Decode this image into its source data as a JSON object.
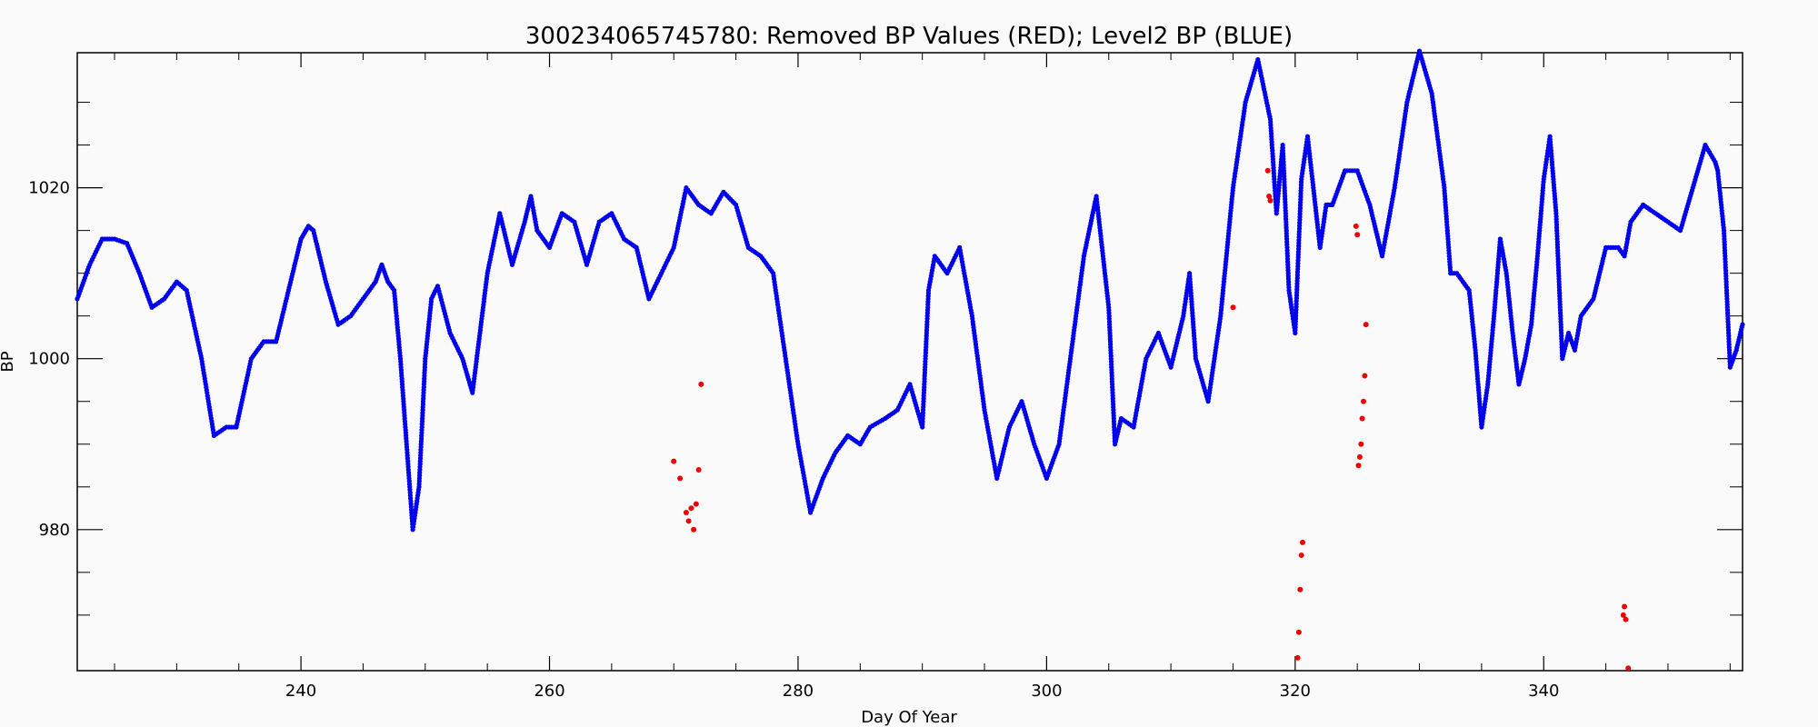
{
  "chart_data": {
    "type": "scatter",
    "title": "300234065745780: Removed BP Values (RED); Level2 BP (BLUE)",
    "xlabel": "Day Of Year",
    "ylabel": "BP",
    "xlim": [
      222,
      356
    ],
    "ylim": [
      963.5,
      1035.8
    ],
    "x_ticks_major": [
      240,
      260,
      280,
      300,
      320,
      340
    ],
    "x_ticks_minor": [
      225,
      230,
      235,
      245,
      250,
      255,
      265,
      270,
      275,
      285,
      290,
      295,
      305,
      310,
      315,
      325,
      330,
      335,
      345,
      350,
      355
    ],
    "y_ticks_major": [
      980,
      1000,
      1020
    ],
    "y_ticks_minor": [
      970,
      975,
      985,
      990,
      995,
      1005,
      1010,
      1015,
      1025,
      1030
    ],
    "grid": false,
    "series": [
      {
        "name": "Level2 BP",
        "color": "#0000ee",
        "points": [
          [
            222,
            1007
          ],
          [
            223,
            1011
          ],
          [
            224,
            1014
          ],
          [
            225,
            1014
          ],
          [
            226,
            1013.5
          ],
          [
            227,
            1010
          ],
          [
            228,
            1006
          ],
          [
            229,
            1007
          ],
          [
            230,
            1009
          ],
          [
            230.8,
            1008
          ],
          [
            232,
            1000
          ],
          [
            233,
            991
          ],
          [
            234,
            992
          ],
          [
            234.8,
            992
          ],
          [
            236,
            1000
          ],
          [
            237,
            1002
          ],
          [
            238,
            1002
          ],
          [
            239,
            1008
          ],
          [
            240,
            1014
          ],
          [
            240.6,
            1015.5
          ],
          [
            241,
            1015
          ],
          [
            242,
            1009
          ],
          [
            243,
            1004
          ],
          [
            244,
            1005
          ],
          [
            245,
            1007
          ],
          [
            246,
            1009
          ],
          [
            246.5,
            1011
          ],
          [
            247,
            1009
          ],
          [
            247.5,
            1008
          ],
          [
            248,
            1000
          ],
          [
            248.5,
            990
          ],
          [
            249,
            980
          ],
          [
            249.5,
            985
          ],
          [
            250,
            1000
          ],
          [
            250.5,
            1007
          ],
          [
            251,
            1008.5
          ],
          [
            252,
            1003
          ],
          [
            253,
            1000
          ],
          [
            253.8,
            996
          ],
          [
            255,
            1010
          ],
          [
            256,
            1017
          ],
          [
            257,
            1011
          ],
          [
            258,
            1016
          ],
          [
            258.5,
            1019
          ],
          [
            259,
            1015
          ],
          [
            260,
            1013
          ],
          [
            261,
            1017
          ],
          [
            262,
            1016
          ],
          [
            263,
            1011
          ],
          [
            264,
            1016
          ],
          [
            265,
            1017
          ],
          [
            266,
            1014
          ],
          [
            267,
            1013
          ],
          [
            268,
            1007
          ],
          [
            269,
            1010
          ],
          [
            270,
            1013
          ],
          [
            271,
            1020
          ],
          [
            272,
            1018
          ],
          [
            273,
            1017
          ],
          [
            274,
            1019.5
          ],
          [
            275,
            1018
          ],
          [
            276,
            1013
          ],
          [
            277,
            1012
          ],
          [
            278,
            1010
          ],
          [
            279,
            1000
          ],
          [
            280,
            990
          ],
          [
            281,
            982
          ],
          [
            282,
            986
          ],
          [
            283,
            989
          ],
          [
            284,
            991
          ],
          [
            285,
            990
          ],
          [
            285.8,
            992
          ],
          [
            287,
            993
          ],
          [
            288,
            994
          ],
          [
            289,
            997
          ],
          [
            290,
            992
          ],
          [
            290.5,
            1008
          ],
          [
            291,
            1012
          ],
          [
            292,
            1010
          ],
          [
            293,
            1013
          ],
          [
            294,
            1005
          ],
          [
            295,
            994
          ],
          [
            296,
            986
          ],
          [
            297,
            992
          ],
          [
            298,
            995
          ],
          [
            299,
            990
          ],
          [
            300,
            986
          ],
          [
            301,
            990
          ],
          [
            302,
            1001
          ],
          [
            303,
            1012
          ],
          [
            304,
            1019
          ],
          [
            305,
            1006
          ],
          [
            305.5,
            990
          ],
          [
            306,
            993
          ],
          [
            307,
            992
          ],
          [
            308,
            1000
          ],
          [
            309,
            1003
          ],
          [
            310,
            999
          ],
          [
            311,
            1005
          ],
          [
            311.5,
            1010
          ],
          [
            312,
            1000
          ],
          [
            313,
            995
          ],
          [
            314,
            1005
          ],
          [
            315,
            1020
          ],
          [
            316,
            1030
          ],
          [
            317,
            1035
          ],
          [
            318,
            1028
          ],
          [
            318.5,
            1017
          ],
          [
            319,
            1025
          ],
          [
            319.5,
            1008
          ],
          [
            320,
            1003
          ],
          [
            320.5,
            1021
          ],
          [
            321,
            1026
          ],
          [
            322,
            1013
          ],
          [
            322.5,
            1018
          ],
          [
            323,
            1018
          ],
          [
            324,
            1022
          ],
          [
            325,
            1022
          ],
          [
            326,
            1018
          ],
          [
            327,
            1012
          ],
          [
            328,
            1020
          ],
          [
            329,
            1030
          ],
          [
            330,
            1036
          ],
          [
            331,
            1031
          ],
          [
            332,
            1020
          ],
          [
            332.5,
            1010
          ],
          [
            333,
            1010
          ],
          [
            334,
            1008
          ],
          [
            334.5,
            1001
          ],
          [
            335,
            992
          ],
          [
            335.5,
            997
          ],
          [
            336,
            1005
          ],
          [
            336.5,
            1014
          ],
          [
            337,
            1010
          ],
          [
            337.5,
            1003
          ],
          [
            338,
            997
          ],
          [
            338.5,
            1000
          ],
          [
            339,
            1004
          ],
          [
            339.5,
            1012
          ],
          [
            340,
            1021
          ],
          [
            340.5,
            1026
          ],
          [
            341,
            1017
          ],
          [
            341.5,
            1000
          ],
          [
            342,
            1003
          ],
          [
            342.5,
            1001
          ],
          [
            343,
            1005
          ],
          [
            344,
            1007
          ],
          [
            345,
            1013
          ],
          [
            346,
            1013
          ],
          [
            346.5,
            1012
          ],
          [
            347,
            1016
          ],
          [
            348,
            1018
          ],
          [
            349,
            1017
          ],
          [
            350,
            1016
          ],
          [
            351,
            1015
          ],
          [
            352,
            1020
          ],
          [
            353,
            1025
          ],
          [
            353.8,
            1023
          ],
          [
            354,
            1022
          ],
          [
            354.5,
            1015
          ],
          [
            355,
            999
          ],
          [
            355.5,
            1001
          ],
          [
            356,
            1004
          ]
        ]
      },
      {
        "name": "Removed BP Values",
        "color": "#ee0000",
        "points": [
          [
            270,
            988
          ],
          [
            270.5,
            986
          ],
          [
            271,
            982
          ],
          [
            271.2,
            981
          ],
          [
            271.4,
            982.5
          ],
          [
            271.6,
            980
          ],
          [
            271.8,
            983
          ],
          [
            272,
            987
          ],
          [
            272.2,
            997
          ],
          [
            315,
            1006
          ],
          [
            317.8,
            1022
          ],
          [
            317.9,
            1019
          ],
          [
            318,
            1018.5
          ],
          [
            320.2,
            965
          ],
          [
            320.3,
            968
          ],
          [
            320.4,
            973
          ],
          [
            320.5,
            977
          ],
          [
            320.6,
            978.5
          ],
          [
            324.9,
            1015.5
          ],
          [
            325,
            1014.5
          ],
          [
            325.1,
            987.5
          ],
          [
            325.2,
            988.5
          ],
          [
            325.3,
            990
          ],
          [
            325.4,
            993
          ],
          [
            325.5,
            995
          ],
          [
            325.6,
            998
          ],
          [
            325.7,
            1004
          ],
          [
            346.4,
            970
          ],
          [
            346.5,
            971
          ],
          [
            346.6,
            969.5
          ],
          [
            346.8,
            963.8
          ]
        ]
      }
    ]
  }
}
